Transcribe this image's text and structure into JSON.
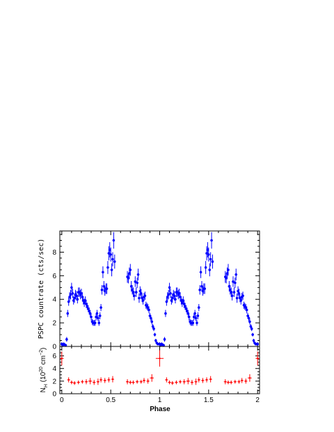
{
  "chart_data": [
    {
      "type": "scatter",
      "xlim": [
        -0.02,
        2.02
      ],
      "ylim": [
        0,
        9.8
      ],
      "ylabel": "PSPC countrate (cts/sec)",
      "x_ticks": [
        0,
        0.5,
        1,
        1.5,
        2
      ],
      "y_ticks": [
        0,
        2,
        4,
        6,
        8
      ],
      "series": [
        {
          "color": "#0000ff",
          "x": [
            0.0,
            0.01,
            0.02,
            0.03,
            0.04,
            0.05,
            0.06,
            0.07,
            0.08,
            0.09,
            0.1,
            0.11,
            0.12,
            0.13,
            0.14,
            0.15,
            0.16,
            0.17,
            0.18,
            0.19,
            0.2,
            0.21,
            0.22,
            0.23,
            0.24,
            0.25,
            0.26,
            0.27,
            0.28,
            0.29,
            0.3,
            0.31,
            0.32,
            0.33,
            0.34,
            0.35,
            0.36,
            0.37,
            0.38,
            0.39,
            0.4,
            0.41,
            0.42,
            0.43,
            0.44,
            0.45,
            0.46,
            0.47,
            0.48,
            0.49,
            0.5,
            0.51,
            0.52,
            0.53,
            0.54,
            0.67,
            0.68,
            0.69,
            0.7,
            0.71,
            0.72,
            0.73,
            0.74,
            0.75,
            0.76,
            0.77,
            0.78,
            0.79,
            0.8,
            0.81,
            0.82,
            0.83,
            0.84,
            0.85,
            0.86,
            0.87,
            0.88,
            0.89,
            0.9,
            0.91,
            0.92,
            0.93,
            0.94,
            0.95,
            0.96,
            0.97,
            0.98,
            0.99,
            1.0,
            1.01,
            1.02,
            1.03,
            1.04,
            1.05,
            1.06,
            1.07,
            1.08,
            1.09,
            1.1,
            1.11,
            1.12,
            1.13,
            1.14,
            1.15,
            1.16,
            1.17,
            1.18,
            1.19,
            1.2,
            1.21,
            1.22,
            1.23,
            1.24,
            1.25,
            1.26,
            1.27,
            1.28,
            1.29,
            1.3,
            1.31,
            1.32,
            1.33,
            1.34,
            1.35,
            1.36,
            1.37,
            1.38,
            1.39,
            1.4,
            1.41,
            1.42,
            1.43,
            1.44,
            1.45,
            1.46,
            1.47,
            1.48,
            1.49,
            1.5,
            1.51,
            1.52,
            1.53,
            1.54,
            1.67,
            1.68,
            1.69,
            1.7,
            1.71,
            1.72,
            1.73,
            1.74,
            1.75,
            1.76,
            1.77,
            1.78,
            1.79,
            1.8,
            1.81,
            1.82,
            1.83,
            1.84,
            1.85,
            1.86,
            1.87,
            1.88,
            1.89,
            1.9,
            1.91,
            1.92,
            1.93,
            1.94,
            1.95,
            1.96,
            1.97,
            1.98,
            1.99,
            2.0
          ],
          "y": [
            0.2,
            0.1,
            0.2,
            0.15,
            0.1,
            0.6,
            2.8,
            3.8,
            4.2,
            4.4,
            5.0,
            4.5,
            3.9,
            4.1,
            4.4,
            4.3,
            4.0,
            4.6,
            4.6,
            4.4,
            4.5,
            4.2,
            3.9,
            3.7,
            3.9,
            3.6,
            3.4,
            3.2,
            3.0,
            2.8,
            2.5,
            2.1,
            2.0,
            2.0,
            2.0,
            2.5,
            2.8,
            2.4,
            2.0,
            2.6,
            3.3,
            4.8,
            6.3,
            5.1,
            4.7,
            4.9,
            4.9,
            6.7,
            7.9,
            8.2,
            7.8,
            6.5,
            7.4,
            9.0,
            7.2,
            5.9,
            5.8,
            6.2,
            6.5,
            5.1,
            4.8,
            4.6,
            4.3,
            5.5,
            4.6,
            5.4,
            6.1,
            4.1,
            4.7,
            4.5,
            4.1,
            3.9,
            4.2,
            4.3,
            3.5,
            3.4,
            3.3,
            3.1,
            2.6,
            2.4,
            2.1,
            1.7,
            1.5,
            1.0,
            0.5,
            0.3,
            0.2,
            0.2,
            0.2,
            0.1,
            0.2,
            0.15,
            0.1,
            0.6,
            2.8,
            3.8,
            4.2,
            4.4,
            5.0,
            4.5,
            3.9,
            4.1,
            4.4,
            4.3,
            4.0,
            4.6,
            4.6,
            4.4,
            4.5,
            4.2,
            3.9,
            3.7,
            3.9,
            3.6,
            3.4,
            3.2,
            3.0,
            2.8,
            2.5,
            2.1,
            2.0,
            2.0,
            2.0,
            2.5,
            2.8,
            2.4,
            2.0,
            2.6,
            3.3,
            4.8,
            6.3,
            5.1,
            4.7,
            4.9,
            4.9,
            6.7,
            7.9,
            8.2,
            7.8,
            6.5,
            7.4,
            9.0,
            7.2,
            5.9,
            5.8,
            6.2,
            6.5,
            5.1,
            4.8,
            4.6,
            4.3,
            5.5,
            4.6,
            5.4,
            6.1,
            4.1,
            4.7,
            4.5,
            4.1,
            3.9,
            4.2,
            4.3,
            3.5,
            3.4,
            3.3,
            3.1,
            2.6,
            2.4,
            2.1,
            1.7,
            1.5,
            1.0,
            0.5,
            0.3,
            0.2,
            0.2,
            0.2
          ],
          "yerr": [
            0.15,
            0.1,
            0.15,
            0.1,
            0.1,
            0.2,
            0.3,
            0.35,
            0.4,
            0.4,
            0.4,
            0.4,
            0.35,
            0.4,
            0.4,
            0.4,
            0.35,
            0.4,
            0.4,
            0.4,
            0.4,
            0.4,
            0.35,
            0.35,
            0.35,
            0.35,
            0.3,
            0.3,
            0.3,
            0.3,
            0.3,
            0.25,
            0.25,
            0.25,
            0.25,
            0.3,
            0.3,
            0.25,
            0.25,
            0.3,
            0.3,
            0.4,
            0.5,
            0.45,
            0.4,
            0.45,
            0.45,
            0.55,
            0.6,
            0.65,
            0.6,
            0.55,
            0.6,
            0.7,
            0.6,
            0.5,
            0.45,
            0.5,
            0.5,
            0.45,
            0.4,
            0.4,
            0.4,
            0.45,
            0.4,
            0.45,
            0.5,
            0.4,
            0.4,
            0.4,
            0.35,
            0.35,
            0.35,
            0.35,
            0.3,
            0.3,
            0.3,
            0.3,
            0.25,
            0.25,
            0.25,
            0.2,
            0.2,
            0.15,
            0.15,
            0.1,
            0.1,
            0.1,
            0.15,
            0.1,
            0.15,
            0.1,
            0.1,
            0.2,
            0.3,
            0.35,
            0.4,
            0.4,
            0.4,
            0.4,
            0.35,
            0.4,
            0.4,
            0.4,
            0.35,
            0.4,
            0.4,
            0.4,
            0.4,
            0.4,
            0.35,
            0.35,
            0.35,
            0.35,
            0.3,
            0.3,
            0.3,
            0.3,
            0.3,
            0.25,
            0.25,
            0.25,
            0.25,
            0.3,
            0.3,
            0.25,
            0.25,
            0.3,
            0.3,
            0.4,
            0.5,
            0.45,
            0.4,
            0.45,
            0.45,
            0.55,
            0.6,
            0.65,
            0.6,
            0.55,
            0.6,
            0.7,
            0.6,
            0.5,
            0.45,
            0.5,
            0.5,
            0.45,
            0.4,
            0.4,
            0.4,
            0.45,
            0.4,
            0.45,
            0.5,
            0.4,
            0.4,
            0.4,
            0.35,
            0.35,
            0.35,
            0.35,
            0.3,
            0.3,
            0.3,
            0.3,
            0.25,
            0.25,
            0.25,
            0.2,
            0.2,
            0.15,
            0.15,
            0.1,
            0.1,
            0.1,
            0.15
          ]
        }
      ]
    },
    {
      "type": "scatter",
      "xlim": [
        -0.02,
        2.02
      ],
      "ylim": [
        0,
        7.5
      ],
      "xlabel": "Phase",
      "ylabel_prefix": "N",
      "ylabel_sub": "H",
      "ylabel_unit_open": " (10",
      "ylabel_unit_exp": "20",
      "ylabel_unit_mid": " cm",
      "ylabel_unit_exp2": "−2",
      "ylabel_unit_close": ")",
      "x_ticks": [
        0,
        0.5,
        1,
        1.5,
        2
      ],
      "x_tick_labels": [
        "0",
        "0.5",
        "1",
        "1.5",
        "2"
      ],
      "y_ticks": [
        0,
        2,
        4,
        6
      ],
      "series": [
        {
          "color": "#ff0000",
          "x": [
            0.0,
            0.07,
            0.1,
            0.13,
            0.17,
            0.21,
            0.25,
            0.29,
            0.33,
            0.37,
            0.4,
            0.44,
            0.48,
            0.52,
            0.67,
            0.7,
            0.73,
            0.77,
            0.81,
            0.84,
            0.88,
            0.92,
            1.0,
            1.07,
            1.1,
            1.13,
            1.17,
            1.21,
            1.25,
            1.29,
            1.33,
            1.37,
            1.4,
            1.44,
            1.48,
            1.52,
            1.67,
            1.7,
            1.73,
            1.77,
            1.81,
            1.84,
            1.88,
            1.92,
            2.0
          ],
          "y": [
            5.6,
            2.2,
            1.8,
            1.7,
            1.8,
            1.9,
            1.9,
            2.0,
            1.8,
            1.9,
            2.2,
            2.1,
            2.2,
            2.3,
            1.9,
            1.8,
            1.8,
            1.9,
            1.9,
            2.1,
            2.0,
            2.5,
            5.6,
            2.2,
            1.8,
            1.7,
            1.8,
            1.9,
            1.9,
            2.0,
            1.8,
            1.9,
            2.2,
            2.1,
            2.2,
            2.3,
            1.9,
            1.8,
            1.8,
            1.9,
            1.9,
            2.1,
            2.0,
            2.5,
            5.6
          ],
          "xerr": [
            0.02,
            0.015,
            0.015,
            0.015,
            0.015,
            0.015,
            0.015,
            0.02,
            0.015,
            0.015,
            0.015,
            0.015,
            0.015,
            0.015,
            0.015,
            0.015,
            0.015,
            0.015,
            0.015,
            0.015,
            0.015,
            0.02,
            0.04,
            0.015,
            0.015,
            0.015,
            0.015,
            0.015,
            0.015,
            0.02,
            0.015,
            0.015,
            0.015,
            0.015,
            0.015,
            0.015,
            0.015,
            0.015,
            0.015,
            0.015,
            0.015,
            0.015,
            0.015,
            0.02,
            0.02
          ],
          "yerr": [
            1.1,
            0.4,
            0.3,
            0.3,
            0.3,
            0.3,
            0.4,
            0.5,
            0.4,
            0.5,
            0.4,
            0.4,
            0.4,
            0.5,
            0.4,
            0.3,
            0.3,
            0.3,
            0.3,
            0.4,
            0.4,
            0.6,
            1.3,
            0.4,
            0.3,
            0.3,
            0.3,
            0.3,
            0.4,
            0.5,
            0.4,
            0.5,
            0.4,
            0.4,
            0.4,
            0.5,
            0.4,
            0.3,
            0.3,
            0.3,
            0.3,
            0.4,
            0.4,
            0.6,
            1.1
          ]
        }
      ]
    }
  ]
}
